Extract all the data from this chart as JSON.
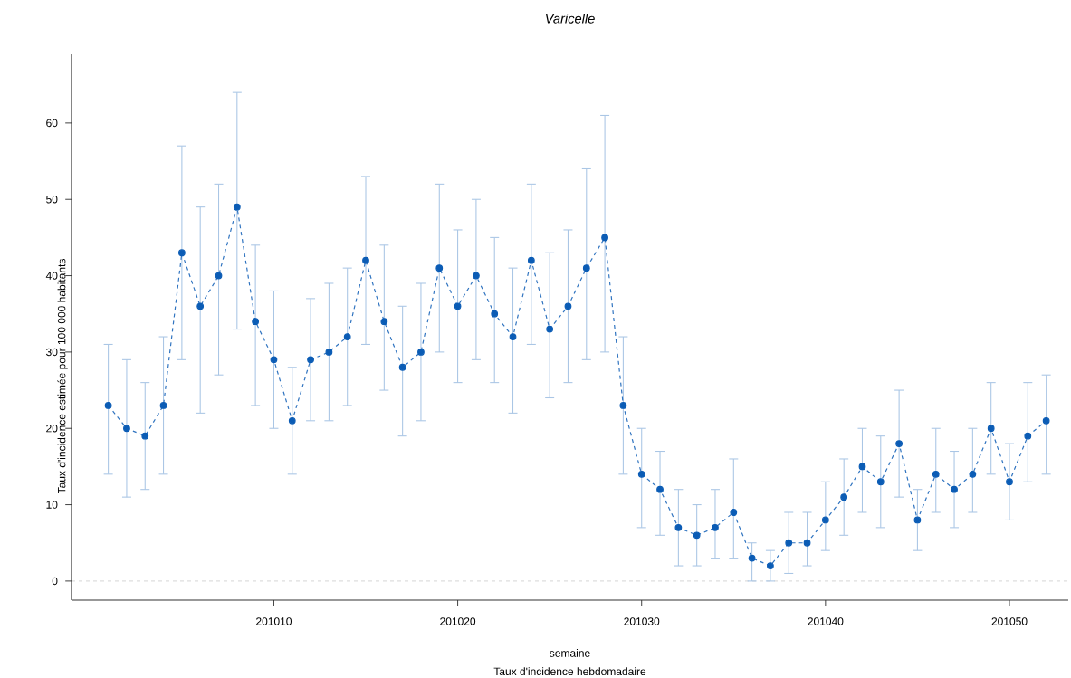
{
  "chart_data": {
    "type": "line",
    "title": "*Varicelle*",
    "xlabel": "semaine",
    "ylabel": "Taux d'incidence estimée pour 100 000 habitants",
    "annotations": [
      "Taux d'incidence hebdomadaire"
    ],
    "x": [
      201001,
      201002,
      201003,
      201004,
      201005,
      201006,
      201007,
      201008,
      201009,
      201010,
      201011,
      201012,
      201013,
      201014,
      201015,
      201016,
      201017,
      201018,
      201019,
      201020,
      201021,
      201022,
      201023,
      201024,
      201025,
      201026,
      201027,
      201028,
      201029,
      201030,
      201031,
      201032,
      201033,
      201034,
      201035,
      201036,
      201037,
      201038,
      201039,
      201040,
      201041,
      201042,
      201043,
      201044,
      201045,
      201046,
      201047,
      201048,
      201049,
      201050,
      201051,
      201052
    ],
    "series": [
      {
        "color": "#0b5cb5",
        "values": [
          23,
          20,
          19,
          23,
          43,
          36,
          40,
          49,
          34,
          29,
          21,
          29,
          30,
          32,
          42,
          34,
          28,
          30,
          41,
          36,
          40,
          35,
          32,
          42,
          33,
          36,
          41,
          45,
          23,
          14,
          12,
          7,
          6,
          7,
          9,
          3,
          2,
          5,
          5,
          8,
          11,
          15,
          13,
          18,
          8,
          14,
          12,
          14,
          20,
          13,
          19,
          21
        ],
        "errors": [
          [
            14,
            31
          ],
          [
            11,
            29
          ],
          [
            12,
            26
          ],
          [
            14,
            32
          ],
          [
            29,
            57
          ],
          [
            22,
            49
          ],
          [
            27,
            52
          ],
          [
            33,
            64
          ],
          [
            23,
            44
          ],
          [
            20,
            38
          ],
          [
            14,
            28
          ],
          [
            21,
            37
          ],
          [
            21,
            39
          ],
          [
            23,
            41
          ],
          [
            31,
            53
          ],
          [
            25,
            44
          ],
          [
            19,
            36
          ],
          [
            21,
            39
          ],
          [
            30,
            52
          ],
          [
            26,
            46
          ],
          [
            29,
            50
          ],
          [
            26,
            45
          ],
          [
            22,
            41
          ],
          [
            31,
            52
          ],
          [
            24,
            43
          ],
          [
            26,
            46
          ],
          [
            29,
            54
          ],
          [
            30,
            61
          ],
          [
            14,
            32
          ],
          [
            7,
            20
          ],
          [
            6,
            17
          ],
          [
            2,
            12
          ],
          [
            2,
            10
          ],
          [
            3,
            12
          ],
          [
            3,
            16
          ],
          [
            0,
            5
          ],
          [
            0,
            4
          ],
          [
            1,
            9
          ],
          [
            2,
            9
          ],
          [
            4,
            13
          ],
          [
            6,
            16
          ],
          [
            9,
            20
          ],
          [
            7,
            19
          ],
          [
            11,
            25
          ],
          [
            4,
            12
          ],
          [
            9,
            20
          ],
          [
            7,
            17
          ],
          [
            9,
            20
          ],
          [
            14,
            26
          ],
          [
            8,
            18
          ],
          [
            13,
            26
          ],
          [
            14,
            27
          ]
        ]
      }
    ],
    "marker": "circle",
    "line_style": "dashed",
    "xlim": [
      200999,
      201053.2
    ],
    "xticks": [
      201010,
      201020,
      201030,
      201040,
      201050
    ],
    "ylim": [
      -2.5,
      69
    ],
    "yticks": [
      0,
      10,
      20,
      30,
      40,
      50,
      60
    ],
    "ref_lines": [
      {
        "axis": "y",
        "value": 0,
        "color": "#cccccc",
        "line_style": "dashed"
      }
    ],
    "grid": false
  }
}
